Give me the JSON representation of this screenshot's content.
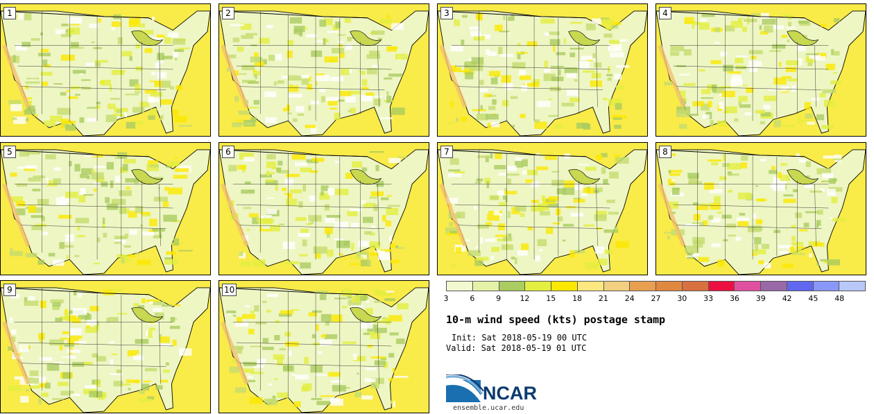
{
  "panels": [
    {
      "label": "1"
    },
    {
      "label": "2"
    },
    {
      "label": "3"
    },
    {
      "label": "4"
    },
    {
      "label": "5"
    },
    {
      "label": "6"
    },
    {
      "label": "7"
    },
    {
      "label": "8"
    },
    {
      "label": "9"
    },
    {
      "label": "10"
    }
  ],
  "colorbar": {
    "ticks": [
      "3",
      "6",
      "9",
      "12",
      "15",
      "18",
      "21",
      "24",
      "27",
      "30",
      "33",
      "36",
      "39",
      "42",
      "45",
      "48"
    ],
    "colors": [
      "#f2f8d0",
      "#e4f2a8",
      "#aacc60",
      "#e2ef40",
      "#fbe800",
      "#fde880",
      "#f2d080",
      "#e8a050",
      "#e08840",
      "#d87040",
      "#ec1040",
      "#e050a0",
      "#9868a8",
      "#6068f0",
      "#8898f8",
      "#b8c8f8"
    ]
  },
  "title": "10-m wind speed (kts) postage stamp",
  "init": "Init: Sat 2018-05-19 00 UTC",
  "valid": "Valid: Sat 2018-05-19 01 UTC",
  "logo": {
    "text": "NCAR",
    "url": "ensemble.ucar.edu"
  }
}
